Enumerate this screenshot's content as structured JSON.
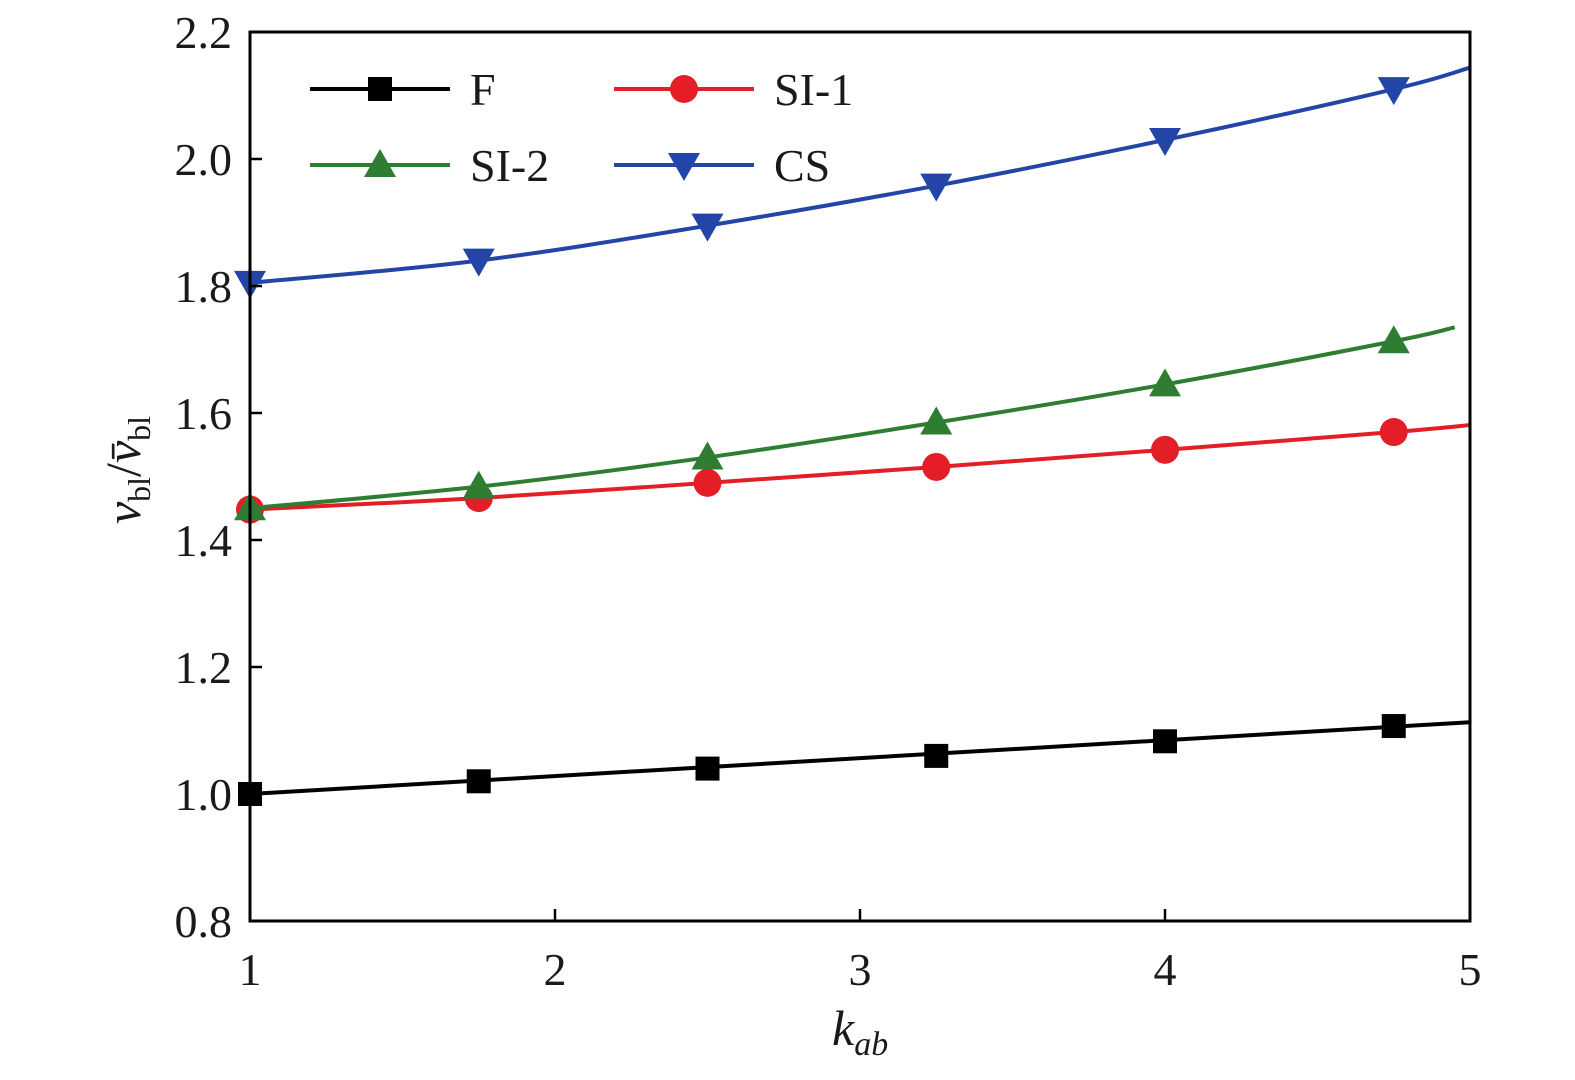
{
  "chart_data": {
    "type": "line",
    "xlabel": {
      "main": "k",
      "sub": "ab"
    },
    "ylabel": {
      "v1": "v",
      "sub1": "bl",
      "slash": "/",
      "v2": "v̄",
      "sub2": "bl"
    },
    "xlim": [
      1,
      5
    ],
    "ylim": [
      0.8,
      2.2
    ],
    "xticks": [
      "1",
      "2",
      "3",
      "4",
      "5"
    ],
    "yticks": [
      "0.8",
      "1.0",
      "1.2",
      "1.4",
      "1.6",
      "1.8",
      "2.0",
      "2.2"
    ],
    "grid": false,
    "legend_position": "top-left",
    "series": [
      {
        "name": "F",
        "color": "#000000",
        "marker": "square",
        "curve_x": [
          1,
          5
        ],
        "curve_y": [
          1.0,
          1.113
        ],
        "marker_x": [
          1,
          1.75,
          2.5,
          3.25,
          4,
          4.75
        ],
        "marker_y": [
          1.0,
          1.02,
          1.04,
          1.06,
          1.083,
          1.107
        ]
      },
      {
        "name": "SI-1",
        "color": "#e41e26",
        "marker": "circle",
        "curve_x": [
          1,
          1.75,
          2.5,
          3.25,
          4,
          4.75,
          5
        ],
        "curve_y": [
          1.448,
          1.466,
          1.49,
          1.515,
          1.542,
          1.57,
          1.581
        ],
        "marker_x": [
          1,
          1.75,
          2.5,
          3.25,
          4,
          4.75
        ],
        "marker_y": [
          1.448,
          1.466,
          1.49,
          1.515,
          1.542,
          1.57
        ]
      },
      {
        "name": "SI-2",
        "color": "#2e7d32",
        "marker": "triangle-up",
        "curve_x": [
          1,
          1.75,
          2.5,
          3.25,
          4,
          4.75,
          4.95
        ],
        "curve_y": [
          1.45,
          1.484,
          1.53,
          1.585,
          1.645,
          1.713,
          1.735
        ],
        "marker_x": [
          1,
          1.75,
          2.5,
          3.25,
          4,
          4.75
        ],
        "marker_y": [
          1.45,
          1.484,
          1.53,
          1.585,
          1.645,
          1.713
        ]
      },
      {
        "name": "CS",
        "color": "#2445a8",
        "marker": "triangle-down",
        "curve_x": [
          1,
          1.75,
          2.5,
          3.25,
          4,
          4.75,
          5
        ],
        "curve_y": [
          1.805,
          1.84,
          1.895,
          1.958,
          2.03,
          2.11,
          2.144
        ],
        "marker_x": [
          1,
          1.75,
          2.5,
          3.25,
          4,
          4.75
        ],
        "marker_y": [
          1.805,
          1.84,
          1.895,
          1.958,
          2.03,
          2.11
        ]
      }
    ]
  }
}
